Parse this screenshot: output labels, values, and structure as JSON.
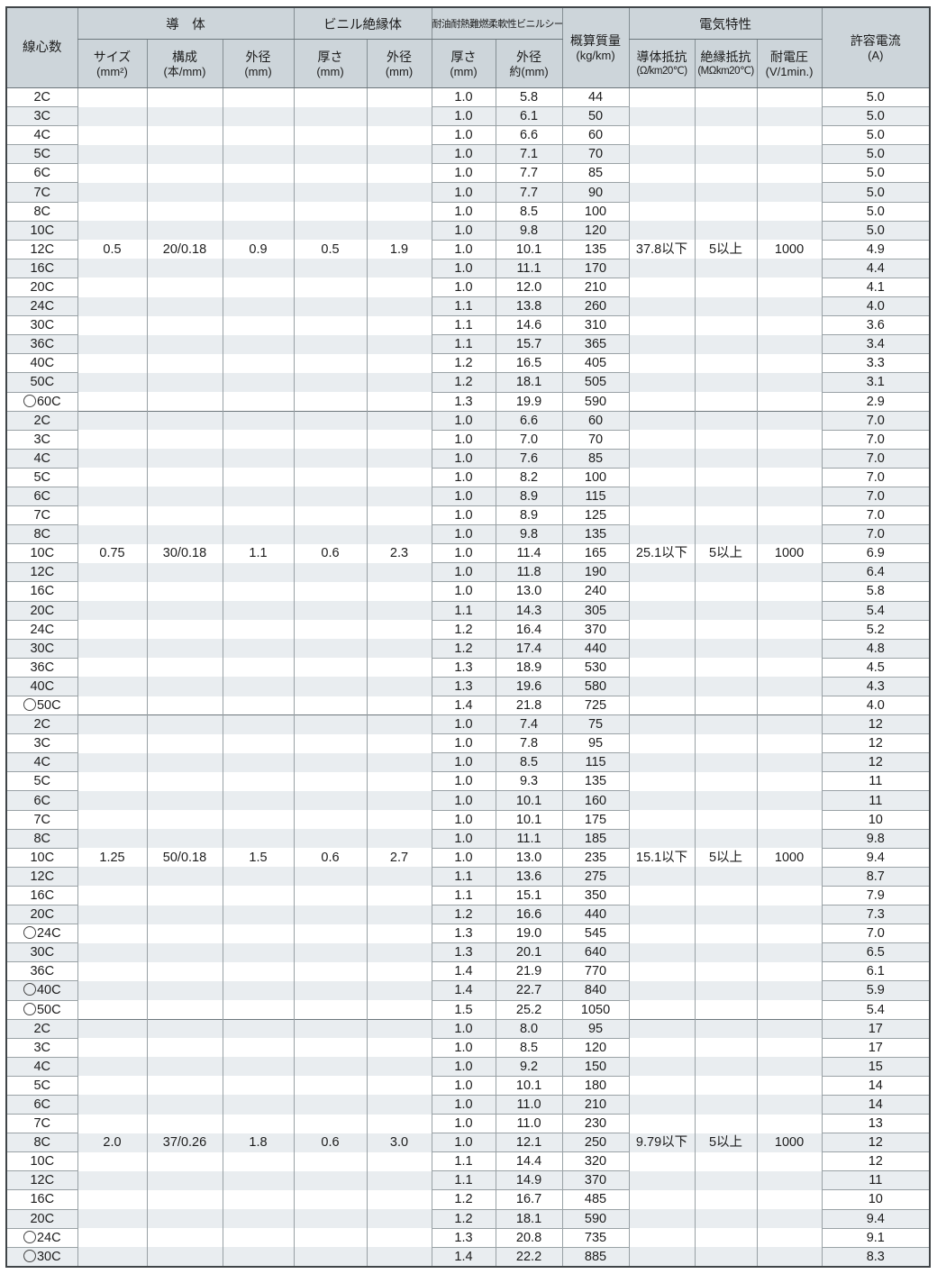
{
  "colors": {
    "header_bg": "#cdd5da",
    "stripe": "#e9edf0",
    "grid": "#98a0a4",
    "outer_border": "#404548",
    "text": "#1c1c1c"
  },
  "table": {
    "header": {
      "core_count": "線心数",
      "conductor_group": "導　体",
      "size_l1": "サイズ",
      "size_l2": "(mm²)",
      "construction_l1": "構成",
      "construction_l2": "(本/mm)",
      "conductor_od_l1": "外径",
      "conductor_od_l2": "(mm)",
      "insulation_group": "ビニル絶縁体",
      "ins_thickness_l1": "厚さ",
      "ins_thickness_l2": "(mm)",
      "ins_od_l1": "外径",
      "ins_od_l2": "(mm)",
      "sheath_group": "耐油耐熱難燃柔軟性ビニルシース",
      "sheath_thickness_l1": "厚さ",
      "sheath_thickness_l2": "(mm)",
      "sheath_od_l1": "外径",
      "sheath_od_l2": "約(mm)",
      "mass_l1": "概算質量",
      "mass_l2": "(kg/km)",
      "electrical_group": "電気特性",
      "resistance_l1": "導体抵抗",
      "resistance_l2": "(Ω/km20℃)",
      "ins_resistance_l1": "絶縁抵抗",
      "ins_resistance_l2": "(MΩkm20℃)",
      "voltage_l1": "耐電圧",
      "voltage_l2": "(V/1min.)",
      "current_l1": "許容電流",
      "current_l2": "(A)"
    },
    "groups": [
      {
        "size": "0.5",
        "construction": "20/0.18",
        "conductor_od": "0.9",
        "insulation_thickness": "0.5",
        "insulation_od": "1.9",
        "conductor_resistance": "37.8以下",
        "insulation_resistance": "5以上",
        "withstand_voltage": "1000",
        "value_row_index": 8,
        "rows": [
          {
            "cores": "2C",
            "circle": false,
            "sheath_t": "1.0",
            "sheath_od": "5.8",
            "mass": "44",
            "current": "5.0"
          },
          {
            "cores": "3C",
            "circle": false,
            "sheath_t": "1.0",
            "sheath_od": "6.1",
            "mass": "50",
            "current": "5.0"
          },
          {
            "cores": "4C",
            "circle": false,
            "sheath_t": "1.0",
            "sheath_od": "6.6",
            "mass": "60",
            "current": "5.0"
          },
          {
            "cores": "5C",
            "circle": false,
            "sheath_t": "1.0",
            "sheath_od": "7.1",
            "mass": "70",
            "current": "5.0"
          },
          {
            "cores": "6C",
            "circle": false,
            "sheath_t": "1.0",
            "sheath_od": "7.7",
            "mass": "85",
            "current": "5.0"
          },
          {
            "cores": "7C",
            "circle": false,
            "sheath_t": "1.0",
            "sheath_od": "7.7",
            "mass": "90",
            "current": "5.0"
          },
          {
            "cores": "8C",
            "circle": false,
            "sheath_t": "1.0",
            "sheath_od": "8.5",
            "mass": "100",
            "current": "5.0"
          },
          {
            "cores": "10C",
            "circle": false,
            "sheath_t": "1.0",
            "sheath_od": "9.8",
            "mass": "120",
            "current": "5.0"
          },
          {
            "cores": "12C",
            "circle": false,
            "sheath_t": "1.0",
            "sheath_od": "10.1",
            "mass": "135",
            "current": "4.9"
          },
          {
            "cores": "16C",
            "circle": false,
            "sheath_t": "1.0",
            "sheath_od": "11.1",
            "mass": "170",
            "current": "4.4"
          },
          {
            "cores": "20C",
            "circle": false,
            "sheath_t": "1.0",
            "sheath_od": "12.0",
            "mass": "210",
            "current": "4.1"
          },
          {
            "cores": "24C",
            "circle": false,
            "sheath_t": "1.1",
            "sheath_od": "13.8",
            "mass": "260",
            "current": "4.0"
          },
          {
            "cores": "30C",
            "circle": false,
            "sheath_t": "1.1",
            "sheath_od": "14.6",
            "mass": "310",
            "current": "3.6"
          },
          {
            "cores": "36C",
            "circle": false,
            "sheath_t": "1.1",
            "sheath_od": "15.7",
            "mass": "365",
            "current": "3.4"
          },
          {
            "cores": "40C",
            "circle": false,
            "sheath_t": "1.2",
            "sheath_od": "16.5",
            "mass": "405",
            "current": "3.3"
          },
          {
            "cores": "50C",
            "circle": false,
            "sheath_t": "1.2",
            "sheath_od": "18.1",
            "mass": "505",
            "current": "3.1"
          },
          {
            "cores": "60C",
            "circle": true,
            "sheath_t": "1.3",
            "sheath_od": "19.9",
            "mass": "590",
            "current": "2.9"
          }
        ]
      },
      {
        "size": "0.75",
        "construction": "30/0.18",
        "conductor_od": "1.1",
        "insulation_thickness": "0.6",
        "insulation_od": "2.3",
        "conductor_resistance": "25.1以下",
        "insulation_resistance": "5以上",
        "withstand_voltage": "1000",
        "value_row_index": 7,
        "rows": [
          {
            "cores": "2C",
            "circle": false,
            "sheath_t": "1.0",
            "sheath_od": "6.6",
            "mass": "60",
            "current": "7.0"
          },
          {
            "cores": "3C",
            "circle": false,
            "sheath_t": "1.0",
            "sheath_od": "7.0",
            "mass": "70",
            "current": "7.0"
          },
          {
            "cores": "4C",
            "circle": false,
            "sheath_t": "1.0",
            "sheath_od": "7.6",
            "mass": "85",
            "current": "7.0"
          },
          {
            "cores": "5C",
            "circle": false,
            "sheath_t": "1.0",
            "sheath_od": "8.2",
            "mass": "100",
            "current": "7.0"
          },
          {
            "cores": "6C",
            "circle": false,
            "sheath_t": "1.0",
            "sheath_od": "8.9",
            "mass": "115",
            "current": "7.0"
          },
          {
            "cores": "7C",
            "circle": false,
            "sheath_t": "1.0",
            "sheath_od": "8.9",
            "mass": "125",
            "current": "7.0"
          },
          {
            "cores": "8C",
            "circle": false,
            "sheath_t": "1.0",
            "sheath_od": "9.8",
            "mass": "135",
            "current": "7.0"
          },
          {
            "cores": "10C",
            "circle": false,
            "sheath_t": "1.0",
            "sheath_od": "11.4",
            "mass": "165",
            "current": "6.9"
          },
          {
            "cores": "12C",
            "circle": false,
            "sheath_t": "1.0",
            "sheath_od": "11.8",
            "mass": "190",
            "current": "6.4"
          },
          {
            "cores": "16C",
            "circle": false,
            "sheath_t": "1.0",
            "sheath_od": "13.0",
            "mass": "240",
            "current": "5.8"
          },
          {
            "cores": "20C",
            "circle": false,
            "sheath_t": "1.1",
            "sheath_od": "14.3",
            "mass": "305",
            "current": "5.4"
          },
          {
            "cores": "24C",
            "circle": false,
            "sheath_t": "1.2",
            "sheath_od": "16.4",
            "mass": "370",
            "current": "5.2"
          },
          {
            "cores": "30C",
            "circle": false,
            "sheath_t": "1.2",
            "sheath_od": "17.4",
            "mass": "440",
            "current": "4.8"
          },
          {
            "cores": "36C",
            "circle": false,
            "sheath_t": "1.3",
            "sheath_od": "18.9",
            "mass": "530",
            "current": "4.5"
          },
          {
            "cores": "40C",
            "circle": false,
            "sheath_t": "1.3",
            "sheath_od": "19.6",
            "mass": "580",
            "current": "4.3"
          },
          {
            "cores": "50C",
            "circle": true,
            "sheath_t": "1.4",
            "sheath_od": "21.8",
            "mass": "725",
            "current": "4.0"
          }
        ]
      },
      {
        "size": "1.25",
        "construction": "50/0.18",
        "conductor_od": "1.5",
        "insulation_thickness": "0.6",
        "insulation_od": "2.7",
        "conductor_resistance": "15.1以下",
        "insulation_resistance": "5以上",
        "withstand_voltage": "1000",
        "value_row_index": 7,
        "rows": [
          {
            "cores": "2C",
            "circle": false,
            "sheath_t": "1.0",
            "sheath_od": "7.4",
            "mass": "75",
            "current": "12"
          },
          {
            "cores": "3C",
            "circle": false,
            "sheath_t": "1.0",
            "sheath_od": "7.8",
            "mass": "95",
            "current": "12"
          },
          {
            "cores": "4C",
            "circle": false,
            "sheath_t": "1.0",
            "sheath_od": "8.5",
            "mass": "115",
            "current": "12"
          },
          {
            "cores": "5C",
            "circle": false,
            "sheath_t": "1.0",
            "sheath_od": "9.3",
            "mass": "135",
            "current": "11"
          },
          {
            "cores": "6C",
            "circle": false,
            "sheath_t": "1.0",
            "sheath_od": "10.1",
            "mass": "160",
            "current": "11"
          },
          {
            "cores": "7C",
            "circle": false,
            "sheath_t": "1.0",
            "sheath_od": "10.1",
            "mass": "175",
            "current": "10"
          },
          {
            "cores": "8C",
            "circle": false,
            "sheath_t": "1.0",
            "sheath_od": "11.1",
            "mass": "185",
            "current": "9.8"
          },
          {
            "cores": "10C",
            "circle": false,
            "sheath_t": "1.0",
            "sheath_od": "13.0",
            "mass": "235",
            "current": "9.4"
          },
          {
            "cores": "12C",
            "circle": false,
            "sheath_t": "1.1",
            "sheath_od": "13.6",
            "mass": "275",
            "current": "8.7"
          },
          {
            "cores": "16C",
            "circle": false,
            "sheath_t": "1.1",
            "sheath_od": "15.1",
            "mass": "350",
            "current": "7.9"
          },
          {
            "cores": "20C",
            "circle": false,
            "sheath_t": "1.2",
            "sheath_od": "16.6",
            "mass": "440",
            "current": "7.3"
          },
          {
            "cores": "24C",
            "circle": true,
            "sheath_t": "1.3",
            "sheath_od": "19.0",
            "mass": "545",
            "current": "7.0"
          },
          {
            "cores": "30C",
            "circle": false,
            "sheath_t": "1.3",
            "sheath_od": "20.1",
            "mass": "640",
            "current": "6.5"
          },
          {
            "cores": "36C",
            "circle": false,
            "sheath_t": "1.4",
            "sheath_od": "21.9",
            "mass": "770",
            "current": "6.1"
          },
          {
            "cores": "40C",
            "circle": true,
            "sheath_t": "1.4",
            "sheath_od": "22.7",
            "mass": "840",
            "current": "5.9"
          },
          {
            "cores": "50C",
            "circle": true,
            "sheath_t": "1.5",
            "sheath_od": "25.2",
            "mass": "1050",
            "current": "5.4"
          }
        ]
      },
      {
        "size": "2.0",
        "construction": "37/0.26",
        "conductor_od": "1.8",
        "insulation_thickness": "0.6",
        "insulation_od": "3.0",
        "conductor_resistance": "9.79以下",
        "insulation_resistance": "5以上",
        "withstand_voltage": "1000",
        "value_row_index": 6,
        "rows": [
          {
            "cores": "2C",
            "circle": false,
            "sheath_t": "1.0",
            "sheath_od": "8.0",
            "mass": "95",
            "current": "17"
          },
          {
            "cores": "3C",
            "circle": false,
            "sheath_t": "1.0",
            "sheath_od": "8.5",
            "mass": "120",
            "current": "17"
          },
          {
            "cores": "4C",
            "circle": false,
            "sheath_t": "1.0",
            "sheath_od": "9.2",
            "mass": "150",
            "current": "15"
          },
          {
            "cores": "5C",
            "circle": false,
            "sheath_t": "1.0",
            "sheath_od": "10.1",
            "mass": "180",
            "current": "14"
          },
          {
            "cores": "6C",
            "circle": false,
            "sheath_t": "1.0",
            "sheath_od": "11.0",
            "mass": "210",
            "current": "14"
          },
          {
            "cores": "7C",
            "circle": false,
            "sheath_t": "1.0",
            "sheath_od": "11.0",
            "mass": "230",
            "current": "13"
          },
          {
            "cores": "8C",
            "circle": false,
            "sheath_t": "1.0",
            "sheath_od": "12.1",
            "mass": "250",
            "current": "12"
          },
          {
            "cores": "10C",
            "circle": false,
            "sheath_t": "1.1",
            "sheath_od": "14.4",
            "mass": "320",
            "current": "12"
          },
          {
            "cores": "12C",
            "circle": false,
            "sheath_t": "1.1",
            "sheath_od": "14.9",
            "mass": "370",
            "current": "11"
          },
          {
            "cores": "16C",
            "circle": false,
            "sheath_t": "1.2",
            "sheath_od": "16.7",
            "mass": "485",
            "current": "10"
          },
          {
            "cores": "20C",
            "circle": false,
            "sheath_t": "1.2",
            "sheath_od": "18.1",
            "mass": "590",
            "current": "9.4"
          },
          {
            "cores": "24C",
            "circle": true,
            "sheath_t": "1.3",
            "sheath_od": "20.8",
            "mass": "735",
            "current": "9.1"
          },
          {
            "cores": "30C",
            "circle": true,
            "sheath_t": "1.4",
            "sheath_od": "22.2",
            "mass": "885",
            "current": "8.3"
          }
        ]
      }
    ]
  }
}
